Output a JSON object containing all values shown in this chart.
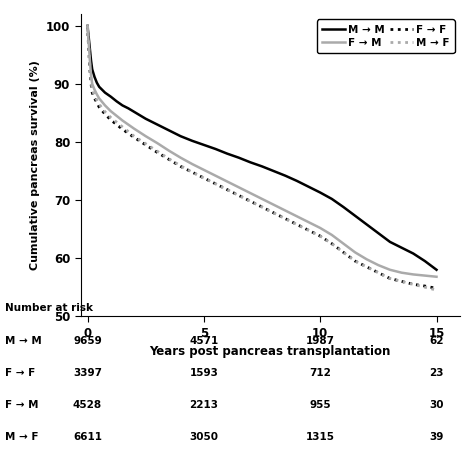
{
  "ylabel": "Cumulative pancreas survival (%)",
  "xlabel": "Years post pancreas transplantation",
  "ylim": [
    50,
    102
  ],
  "xlim": [
    -0.3,
    16
  ],
  "yticks": [
    50,
    60,
    70,
    80,
    90,
    100
  ],
  "xticks": [
    0,
    5,
    10,
    15
  ],
  "curves": {
    "MM": {
      "label": "M → M",
      "color": "#000000",
      "linestyle": "solid",
      "linewidth": 1.8,
      "x": [
        0,
        0.01,
        0.05,
        0.1,
        0.15,
        0.2,
        0.3,
        0.4,
        0.5,
        0.75,
        1.0,
        1.25,
        1.5,
        1.75,
        2.0,
        2.5,
        3.0,
        3.5,
        4.0,
        4.5,
        5.0,
        5.5,
        6.0,
        6.5,
        7.0,
        7.5,
        8.0,
        8.5,
        9.0,
        9.5,
        10.0,
        10.5,
        11.0,
        11.5,
        12.0,
        12.5,
        13.0,
        13.5,
        14.0,
        14.5,
        15.0
      ],
      "y": [
        100,
        99.5,
        98.0,
        96.0,
        94.0,
        92.5,
        91.2,
        90.2,
        89.5,
        88.5,
        87.8,
        87.0,
        86.3,
        85.8,
        85.2,
        84.0,
        83.0,
        82.0,
        81.0,
        80.2,
        79.5,
        78.8,
        78.0,
        77.3,
        76.5,
        75.8,
        75.0,
        74.2,
        73.3,
        72.3,
        71.3,
        70.2,
        68.8,
        67.3,
        65.8,
        64.3,
        62.8,
        61.8,
        60.8,
        59.5,
        58.0
      ]
    },
    "FF": {
      "label": "F → F",
      "color": "#000000",
      "linestyle": "dotted",
      "linewidth": 2.0,
      "x": [
        0,
        0.01,
        0.05,
        0.1,
        0.15,
        0.2,
        0.3,
        0.4,
        0.5,
        0.75,
        1.0,
        1.25,
        1.5,
        1.75,
        2.0,
        2.5,
        3.0,
        3.5,
        4.0,
        4.5,
        5.0,
        5.5,
        6.0,
        6.5,
        7.0,
        7.5,
        8.0,
        8.5,
        9.0,
        9.5,
        10.0,
        10.5,
        11.0,
        11.5,
        12.0,
        12.5,
        13.0,
        13.5,
        14.0,
        14.5,
        15.0
      ],
      "y": [
        100,
        99.0,
        96.0,
        92.5,
        90.0,
        88.5,
        87.5,
        86.8,
        86.0,
        84.8,
        83.8,
        83.0,
        82.2,
        81.5,
        80.8,
        79.5,
        78.2,
        77.0,
        75.8,
        74.8,
        73.8,
        72.8,
        71.8,
        70.8,
        69.8,
        68.8,
        67.8,
        66.8,
        65.8,
        64.8,
        63.8,
        62.5,
        61.0,
        59.5,
        58.5,
        57.5,
        56.5,
        56.0,
        55.5,
        55.2,
        54.8
      ]
    },
    "FM": {
      "label": "F → M",
      "color": "#aaaaaa",
      "linestyle": "solid",
      "linewidth": 1.8,
      "x": [
        0,
        0.01,
        0.05,
        0.1,
        0.15,
        0.2,
        0.3,
        0.4,
        0.5,
        0.75,
        1.0,
        1.25,
        1.5,
        1.75,
        2.0,
        2.5,
        3.0,
        3.5,
        4.0,
        4.5,
        5.0,
        5.5,
        6.0,
        6.5,
        7.0,
        7.5,
        8.0,
        8.5,
        9.0,
        9.5,
        10.0,
        10.5,
        11.0,
        11.5,
        12.0,
        12.5,
        13.0,
        13.5,
        14.0,
        14.5,
        15.0
      ],
      "y": [
        100,
        99.2,
        97.0,
        94.0,
        91.5,
        90.0,
        89.0,
        88.2,
        87.5,
        86.3,
        85.3,
        84.5,
        83.7,
        83.0,
        82.3,
        81.0,
        79.8,
        78.5,
        77.3,
        76.2,
        75.2,
        74.2,
        73.2,
        72.2,
        71.2,
        70.2,
        69.2,
        68.2,
        67.2,
        66.2,
        65.2,
        64.0,
        62.5,
        61.0,
        59.8,
        58.8,
        58.0,
        57.5,
        57.2,
        57.0,
        56.8
      ]
    },
    "MF": {
      "label": "M → F",
      "color": "#aaaaaa",
      "linestyle": "dotted",
      "linewidth": 2.0,
      "x": [
        0,
        0.01,
        0.05,
        0.1,
        0.15,
        0.2,
        0.3,
        0.4,
        0.5,
        0.75,
        1.0,
        1.25,
        1.5,
        1.75,
        2.0,
        2.5,
        3.0,
        3.5,
        4.0,
        4.5,
        5.0,
        5.5,
        6.0,
        6.5,
        7.0,
        7.5,
        8.0,
        8.5,
        9.0,
        9.5,
        10.0,
        10.5,
        11.0,
        11.5,
        12.0,
        12.5,
        13.0,
        13.5,
        14.0,
        14.5,
        15.0
      ],
      "y": [
        100,
        99.0,
        96.5,
        93.0,
        90.5,
        89.0,
        88.0,
        87.2,
        86.5,
        85.2,
        84.2,
        83.4,
        82.6,
        81.8,
        81.0,
        79.7,
        78.4,
        77.1,
        75.9,
        74.8,
        73.8,
        72.8,
        71.8,
        70.8,
        69.8,
        68.8,
        67.8,
        66.8,
        65.8,
        64.8,
        63.8,
        62.5,
        61.0,
        59.5,
        58.5,
        57.5,
        56.5,
        56.0,
        55.5,
        55.0,
        54.5
      ]
    }
  },
  "risk_table": {
    "header": "Number at risk",
    "rows": [
      {
        "label": "M → M",
        "values": [
          9659,
          4571,
          1987,
          62
        ]
      },
      {
        "label": "F → F",
        "values": [
          3397,
          1593,
          712,
          23
        ]
      },
      {
        "label": "F → M",
        "values": [
          4528,
          2213,
          955,
          30
        ]
      },
      {
        "label": "M → F",
        "values": [
          6611,
          3050,
          1315,
          39
        ]
      }
    ],
    "time_points": [
      0,
      5,
      10,
      15
    ]
  },
  "background_color": "#ffffff"
}
